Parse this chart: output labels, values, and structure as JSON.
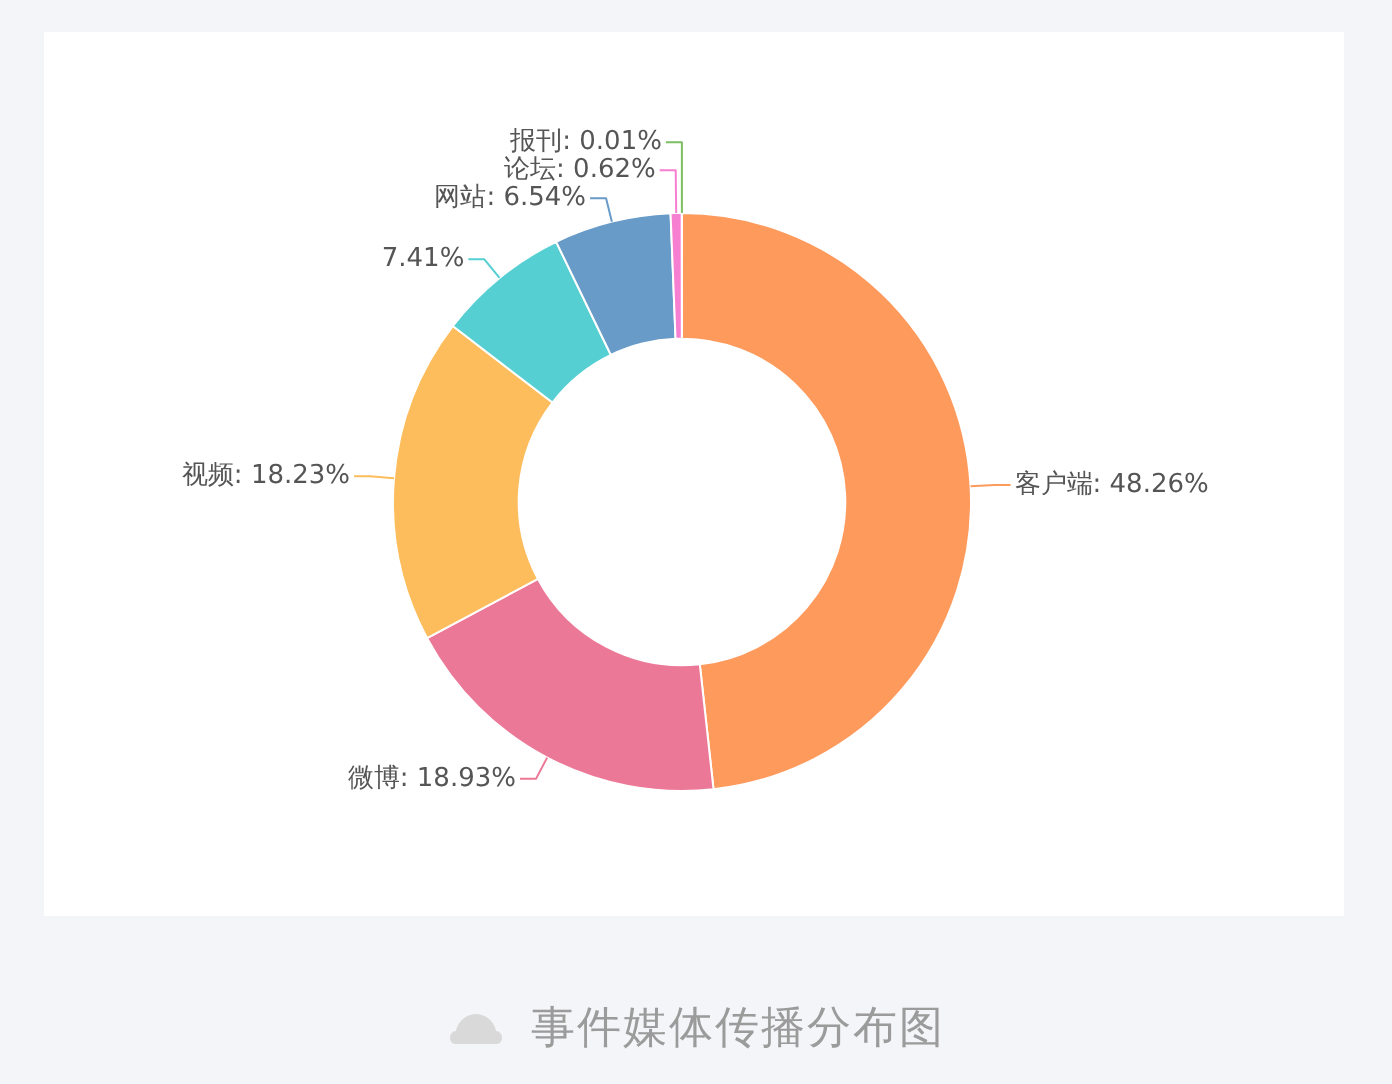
{
  "chart_data": {
    "type": "donut",
    "title": "事件媒体传播分布图",
    "categories": [
      "客户端",
      "微博",
      "视频",
      null,
      "网站",
      "论坛",
      "报刊"
    ],
    "values": [
      48.26,
      18.93,
      18.23,
      7.41,
      6.54,
      0.62,
      0.01
    ],
    "value_labels": [
      "48.26%",
      "18.93%",
      "18.23%",
      "7.41%",
      "6.54%",
      "0.62%",
      "0.01%"
    ],
    "colors": [
      "#fe9a5c",
      "#ec7898",
      "#febd5c",
      "#56cfd3",
      "#689bc8",
      "#f77fd1",
      "#7cbf64"
    ],
    "legend": false
  }
}
